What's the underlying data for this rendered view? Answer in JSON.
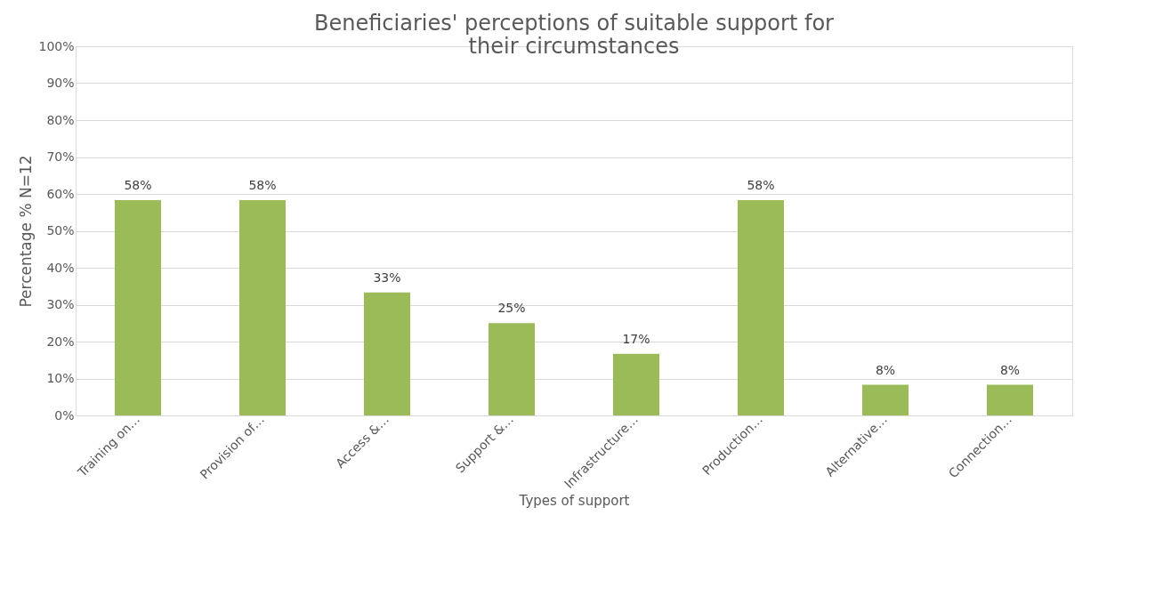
{
  "chart_data": {
    "type": "bar",
    "title": "Beneficiaries' perceptions of suitable  support for their circumstances",
    "xlabel": "Types of support",
    "ylabel": "Percentage %      N=12",
    "categories": [
      "Training on…",
      "Provision of…",
      "Access &…",
      "Support &…",
      "Infrastructure…",
      "Production…",
      "Alternative…",
      "Connection…"
    ],
    "values": [
      58.3,
      58.3,
      33.3,
      25,
      16.7,
      58.3,
      8.3,
      8.3
    ],
    "value_labels": [
      "58%",
      "58%",
      "33%",
      "25%",
      "17%",
      "58%",
      "8%",
      "8%"
    ],
    "color": "#9bbb59",
    "ylim": [
      0,
      100
    ],
    "yticks": [
      {
        "value": 0,
        "label": "0%"
      },
      {
        "value": 10,
        "label": "10%"
      },
      {
        "value": 20,
        "label": "20%"
      },
      {
        "value": 30,
        "label": "30%"
      },
      {
        "value": 40,
        "label": "40%"
      },
      {
        "value": 50,
        "label": "50%"
      },
      {
        "value": 60,
        "label": "60%"
      },
      {
        "value": 70,
        "label": "70%"
      },
      {
        "value": 80,
        "label": "80%"
      },
      {
        "value": 90,
        "label": "90%"
      },
      {
        "value": 100,
        "label": "100%"
      }
    ],
    "grid": "y"
  }
}
